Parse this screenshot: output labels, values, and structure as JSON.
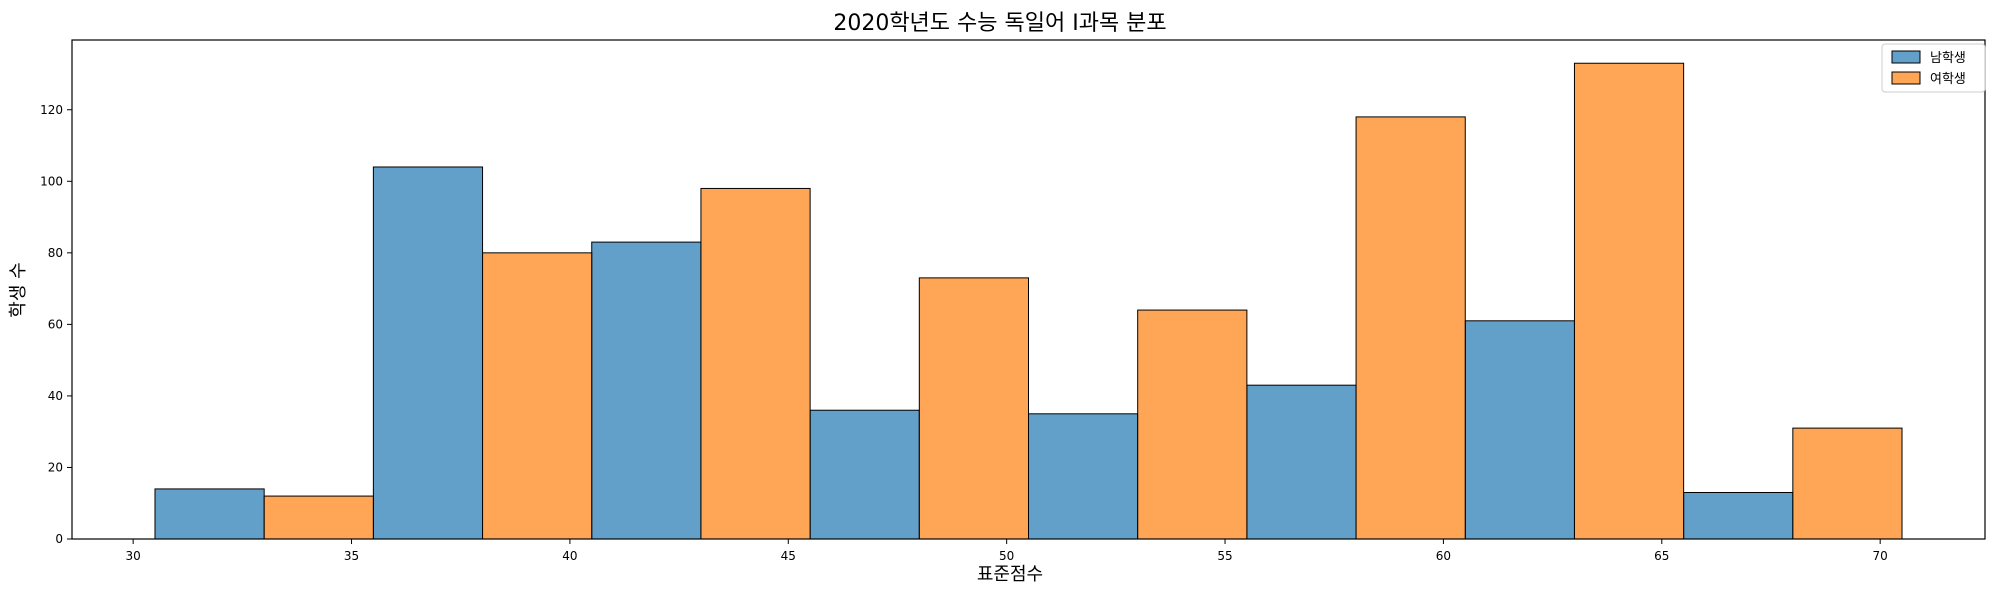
{
  "chart_data": {
    "type": "bar",
    "title": "2020학년도 수능 독일어 I과목 분포",
    "xlabel": "표준점수",
    "ylabel": "학생 수",
    "bin_edges": [
      30.5,
      35.5,
      40.5,
      45.5,
      50.5,
      55.5,
      60.5,
      65.5,
      70.5
    ],
    "xlim": [
      28.6,
      72.4
    ],
    "ylim": [
      0,
      139.5
    ],
    "x_ticks": [
      30,
      35,
      40,
      45,
      50,
      55,
      60,
      65,
      70
    ],
    "y_ticks": [
      0,
      20,
      40,
      60,
      80,
      100,
      120
    ],
    "grid": false,
    "legend_position": "top-right",
    "series": [
      {
        "name": "남학생",
        "color": "#1f77b4",
        "values": [
          14,
          104,
          83,
          36,
          35,
          43,
          61,
          13
        ]
      },
      {
        "name": "여학생",
        "color": "#ff7f0e",
        "values": [
          12,
          80,
          98,
          73,
          64,
          118,
          133,
          31
        ]
      }
    ]
  }
}
